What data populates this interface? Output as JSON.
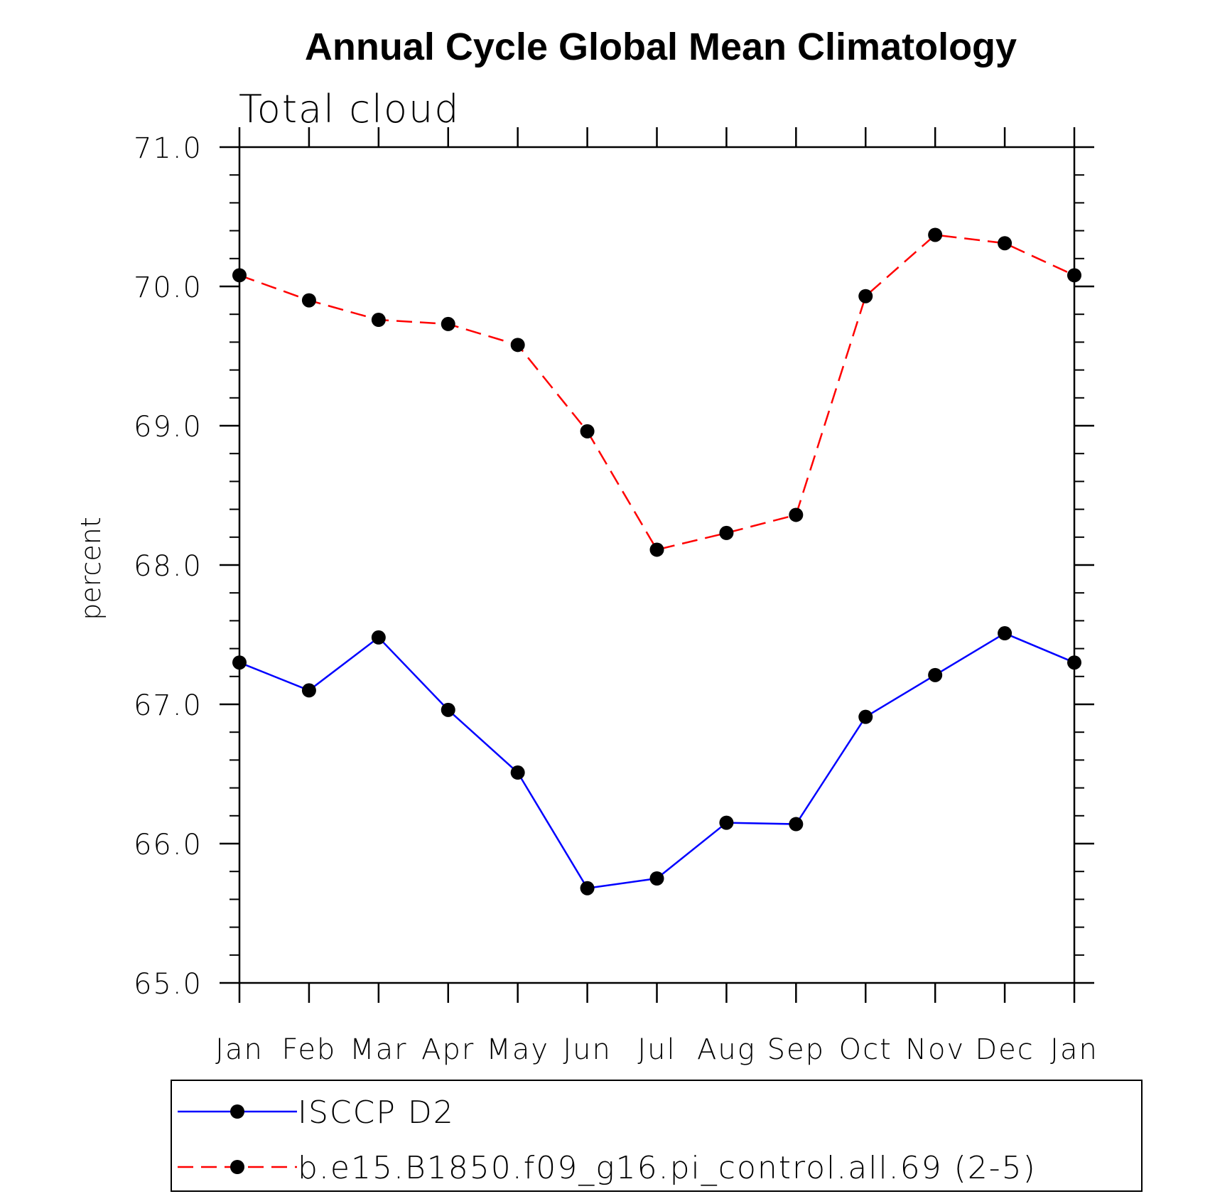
{
  "chart_data": {
    "type": "line",
    "title": "Annual Cycle Global Mean Climatology",
    "subtitle": "Total cloud",
    "ylabel": "percent",
    "xlabel": "",
    "categories": [
      "Jan",
      "Feb",
      "Mar",
      "Apr",
      "May",
      "Jun",
      "Jul",
      "Aug",
      "Sep",
      "Oct",
      "Nov",
      "Dec",
      "Jan"
    ],
    "ylim": [
      65.0,
      71.0
    ],
    "y_major_ticks": [
      "65.0",
      "66.0",
      "67.0",
      "68.0",
      "69.0",
      "70.0",
      "71.0"
    ],
    "y_minor_step": 0.2,
    "grid": false,
    "legend_position": "bottom",
    "series": [
      {
        "name": "ISCCP D2",
        "color": "#0000ff",
        "line_style": "solid",
        "marker": "filled-circle",
        "values": [
          67.3,
          67.1,
          67.48,
          66.96,
          66.51,
          65.68,
          65.75,
          66.15,
          66.14,
          66.91,
          67.21,
          67.51,
          67.3
        ]
      },
      {
        "name": "b.e15.B1850.f09_g16.pi_control.all.69 (2-5)",
        "color": "#ff0000",
        "line_style": "dashed",
        "marker": "filled-circle",
        "values": [
          70.08,
          69.9,
          69.76,
          69.73,
          69.58,
          68.96,
          68.11,
          68.23,
          68.36,
          69.93,
          70.37,
          70.31,
          70.08
        ]
      }
    ]
  }
}
